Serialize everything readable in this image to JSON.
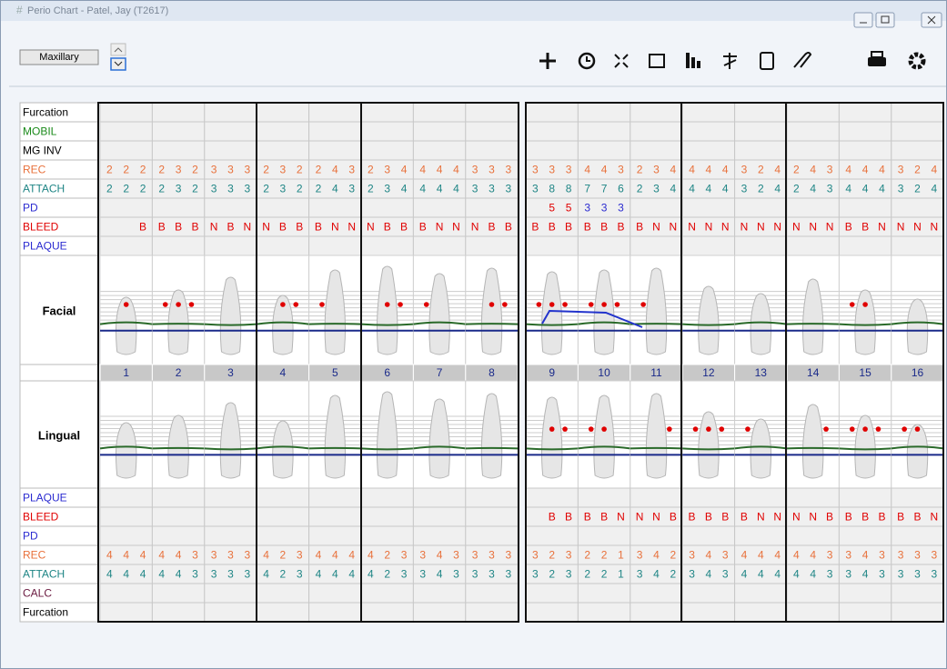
{
  "window": {
    "title": "Perio Chart - Patel, Jay (T2617)"
  },
  "arch": {
    "label": "Maxillary"
  },
  "upper_rows": [
    {
      "label": "Furcation"
    },
    {
      "label": "MOBIL"
    },
    {
      "label": "MG INV"
    },
    {
      "label": "REC",
      "cells": [
        [
          2,
          2,
          2
        ],
        [
          2,
          3,
          2
        ],
        [
          3,
          3,
          3
        ],
        [
          2,
          3,
          2
        ],
        [
          2,
          4,
          3
        ],
        [
          2,
          3,
          4
        ],
        [
          4,
          4,
          4
        ],
        [
          3,
          3,
          3
        ],
        [
          3,
          3,
          3
        ],
        [
          4,
          4,
          3
        ],
        [
          2,
          3,
          4
        ],
        [
          4,
          4,
          4
        ],
        [
          3,
          2,
          4
        ],
        [
          2,
          4,
          3
        ],
        [
          4,
          4,
          4
        ],
        [
          3,
          2,
          4
        ]
      ]
    },
    {
      "label": "ATTACH",
      "cells": [
        [
          2,
          2,
          2
        ],
        [
          2,
          3,
          2
        ],
        [
          3,
          3,
          3
        ],
        [
          2,
          3,
          2
        ],
        [
          2,
          4,
          3
        ],
        [
          2,
          3,
          4
        ],
        [
          4,
          4,
          4
        ],
        [
          3,
          3,
          3
        ],
        [
          3,
          8,
          8
        ],
        [
          7,
          7,
          6
        ],
        [
          2,
          3,
          4
        ],
        [
          4,
          4,
          4
        ],
        [
          3,
          2,
          4
        ],
        [
          2,
          4,
          3
        ],
        [
          4,
          4,
          4
        ],
        [
          3,
          2,
          4
        ]
      ]
    },
    {
      "label": "PD",
      "cells": [
        [
          null,
          null,
          null
        ],
        [
          null,
          null,
          null
        ],
        [
          null,
          null,
          null
        ],
        [
          null,
          null,
          null
        ],
        [
          null,
          null,
          null
        ],
        [
          null,
          null,
          null
        ],
        [
          null,
          null,
          null
        ],
        [
          null,
          null,
          null
        ],
        [
          null,
          5,
          5
        ],
        [
          3,
          3,
          3
        ],
        [
          null,
          null,
          null
        ],
        [
          null,
          null,
          null
        ],
        [
          null,
          null,
          null
        ],
        [
          null,
          null,
          null
        ],
        [
          null,
          null,
          null
        ],
        [
          null,
          null,
          null
        ]
      ]
    },
    {
      "label": "BLEED",
      "cells": [
        [
          null,
          null,
          "B"
        ],
        [
          "B",
          "B",
          "B"
        ],
        [
          "N",
          "B",
          "N"
        ],
        [
          "N",
          "B",
          "B"
        ],
        [
          "B",
          "N",
          "N"
        ],
        [
          "N",
          "B",
          "B"
        ],
        [
          "B",
          "N",
          "N"
        ],
        [
          "N",
          "B",
          "B"
        ],
        [
          "B",
          "B",
          "B"
        ],
        [
          "B",
          "B",
          "B"
        ],
        [
          "B",
          "N",
          "N"
        ],
        [
          "N",
          "N",
          "N"
        ],
        [
          "N",
          "N",
          "N"
        ],
        [
          "N",
          "N",
          "N"
        ],
        [
          "B",
          "B",
          "N"
        ],
        [
          "N",
          "N",
          "N"
        ]
      ]
    },
    {
      "label": "PLAQUE"
    }
  ],
  "facial_label": "Facial",
  "teeth": [
    1,
    2,
    3,
    4,
    5,
    6,
    7,
    8,
    9,
    10,
    11,
    12,
    13,
    14,
    15,
    16
  ],
  "lingual_label": "Lingual",
  "lower_rows": [
    {
      "label": "PLAQUE"
    },
    {
      "label": "BLEED",
      "cells": [
        [
          null,
          null,
          null
        ],
        [
          null,
          null,
          null
        ],
        [
          null,
          null,
          null
        ],
        [
          null,
          null,
          null
        ],
        [
          null,
          null,
          null
        ],
        [
          null,
          null,
          null
        ],
        [
          null,
          null,
          null
        ],
        [
          null,
          null,
          null
        ],
        [
          null,
          "B",
          "B"
        ],
        [
          "B",
          "B",
          "N"
        ],
        [
          "N",
          "N",
          "B"
        ],
        [
          "B",
          "B",
          "B"
        ],
        [
          "B",
          "N",
          "N"
        ],
        [
          "N",
          "N",
          "B"
        ],
        [
          "B",
          "B",
          "B"
        ],
        [
          "B",
          "B",
          "N"
        ]
      ]
    },
    {
      "label": "PD"
    },
    {
      "label": "REC",
      "cells": [
        [
          4,
          4,
          4
        ],
        [
          4,
          4,
          3
        ],
        [
          3,
          3,
          3
        ],
        [
          4,
          2,
          3
        ],
        [
          4,
          4,
          4
        ],
        [
          4,
          2,
          3
        ],
        [
          3,
          4,
          3
        ],
        [
          3,
          3,
          3
        ],
        [
          3,
          2,
          3
        ],
        [
          2,
          2,
          1
        ],
        [
          3,
          4,
          2
        ],
        [
          3,
          4,
          3
        ],
        [
          4,
          4,
          4
        ],
        [
          4,
          4,
          3
        ],
        [
          3,
          4,
          3
        ],
        [
          3,
          3,
          3
        ]
      ]
    },
    {
      "label": "ATTACH",
      "cells": [
        [
          4,
          4,
          4
        ],
        [
          4,
          4,
          3
        ],
        [
          3,
          3,
          3
        ],
        [
          4,
          2,
          3
        ],
        [
          4,
          4,
          4
        ],
        [
          4,
          2,
          3
        ],
        [
          3,
          4,
          3
        ],
        [
          3,
          3,
          3
        ],
        [
          3,
          2,
          3
        ],
        [
          2,
          2,
          1
        ],
        [
          3,
          4,
          2
        ],
        [
          3,
          4,
          3
        ],
        [
          4,
          4,
          4
        ],
        [
          4,
          4,
          3
        ],
        [
          3,
          4,
          3
        ],
        [
          3,
          3,
          3
        ]
      ]
    },
    {
      "label": "CALC"
    },
    {
      "label": "Furcation"
    }
  ]
}
